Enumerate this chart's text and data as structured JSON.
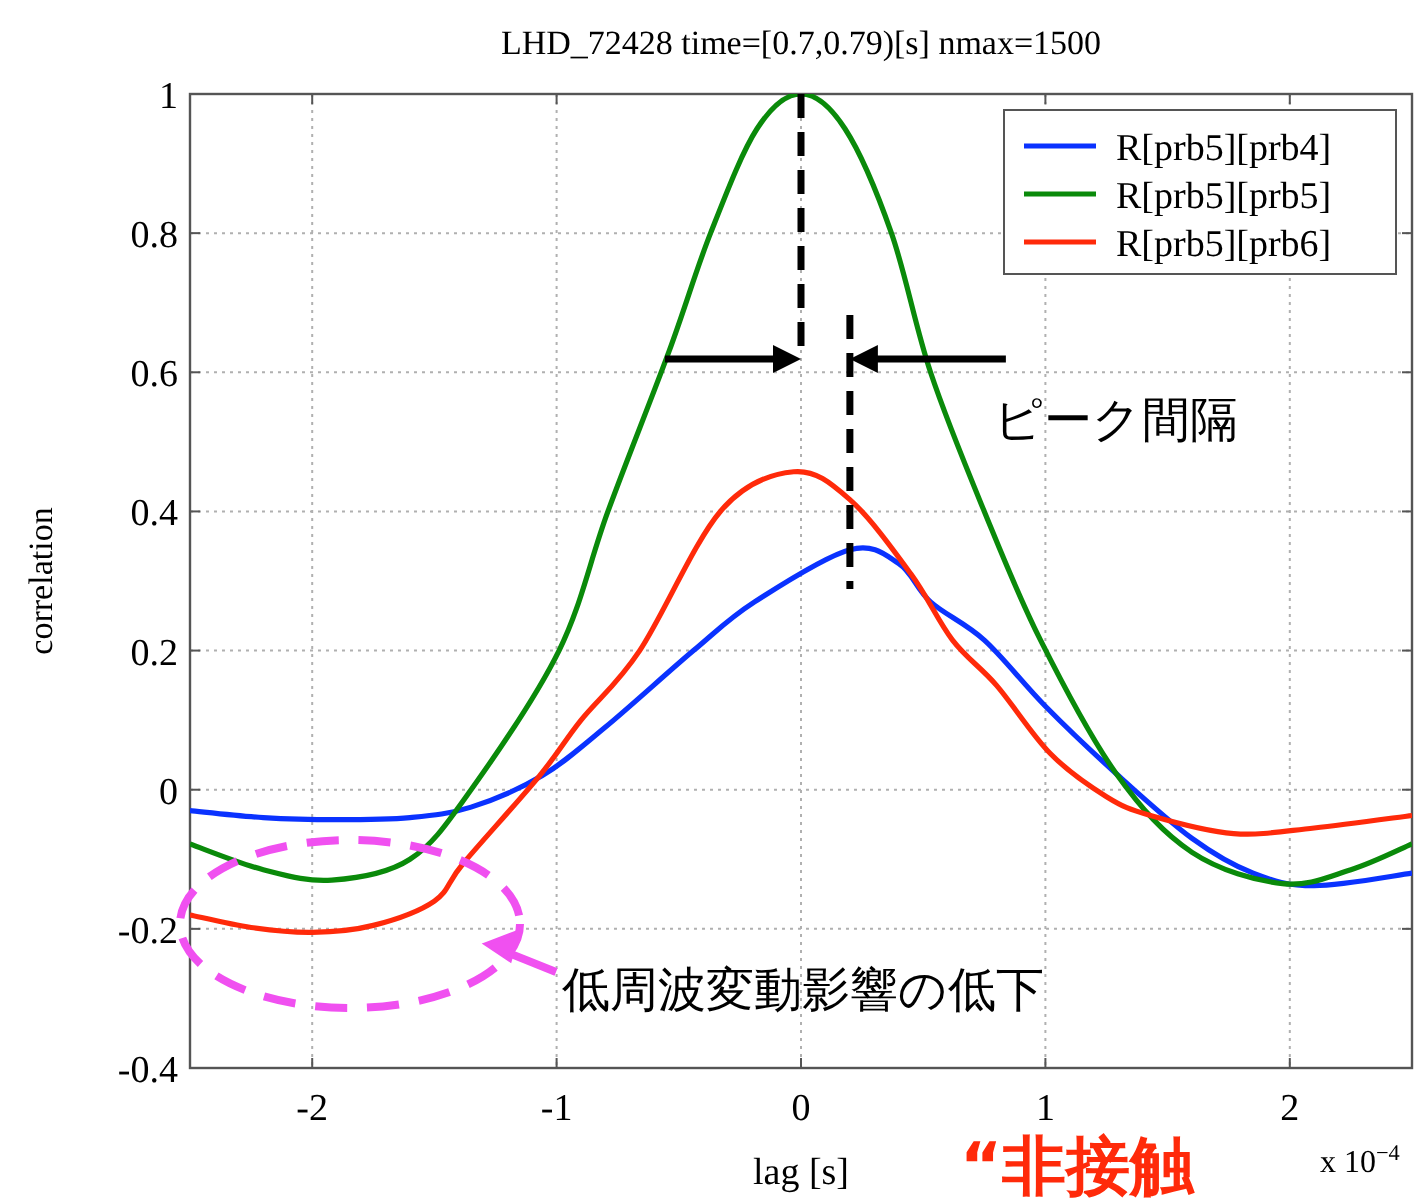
{
  "chart_data": {
    "type": "line",
    "title": "LHD_72428 time=[0.7,0.79)[s] nmax=1500",
    "xlabel": "lag [s]",
    "ylabel": "correlation",
    "xlim": [
      -2.5,
      2.5
    ],
    "xticks": [
      -2,
      -1,
      0,
      1,
      2
    ],
    "ylim": [
      -0.4,
      1
    ],
    "yticks": [
      -0.4,
      -0.2,
      0,
      0.2,
      0.4,
      0.6,
      0.8,
      1
    ],
    "grid": true,
    "legend": "top right",
    "line_style": "solid",
    "marker": "none",
    "annotations": [
      "ピーク間隔",
      "低周波変動影響の低下",
      "x 10$^{−4}$",
      "“非接触"
    ],
    "series": [
      {
        "name": "R[prb5][prb4]",
        "color": "#0a32ff",
        "x": [
          -2.5,
          -2.2,
          -1.9,
          -1.6,
          -1.35,
          -1.06,
          -0.8,
          -0.44,
          -0.19,
          0.2,
          0.4,
          0.53,
          0.75,
          1.0,
          1.29,
          1.6,
          1.85,
          2.1,
          2.5
        ],
        "values": [
          -0.03,
          -0.04,
          -0.043,
          -0.04,
          -0.025,
          0.02,
          0.09,
          0.2,
          0.27,
          0.345,
          0.325,
          0.27,
          0.215,
          0.12,
          0.023,
          -0.07,
          -0.12,
          -0.138,
          -0.12
        ]
      },
      {
        "name": "R[prb5][prb5]",
        "color": "#0a8a0a",
        "x": [
          -2.5,
          -2.2,
          -1.92,
          -1.6,
          -1.35,
          -0.99,
          -0.79,
          -0.54,
          -0.37,
          -0.18,
          0,
          0.18,
          0.37,
          0.53,
          0.75,
          0.98,
          1.29,
          1.6,
          1.97,
          2.25,
          2.5
        ],
        "values": [
          -0.078,
          -0.115,
          -0.13,
          -0.1,
          0,
          0.2,
          0.4,
          0.63,
          0.8,
          0.95,
          1,
          0.95,
          0.8,
          0.6,
          0.4,
          0.215,
          0.023,
          -0.09,
          -0.135,
          -0.115,
          -0.078
        ]
      },
      {
        "name": "R[prb5][prb6]",
        "color": "#ff2a0a",
        "x": [
          -2.5,
          -2.25,
          -2.0,
          -1.75,
          -1.5,
          -1.38,
          -1.07,
          -0.9,
          -0.66,
          -0.33,
          -0.03,
          0.2,
          0.45,
          0.62,
          0.8,
          1.02,
          1.25,
          1.43,
          1.77,
          2.1,
          2.5
        ],
        "values": [
          -0.18,
          -0.198,
          -0.205,
          -0.195,
          -0.16,
          -0.105,
          0.02,
          0.1,
          0.2,
          0.4,
          0.457,
          0.417,
          0.31,
          0.215,
          0.15,
          0.052,
          -0.01,
          -0.037,
          -0.063,
          -0.055,
          -0.037
        ]
      }
    ]
  }
}
